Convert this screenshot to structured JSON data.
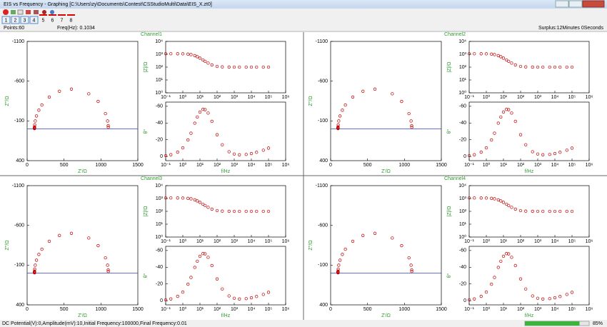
{
  "window": {
    "title": "EIS vs Frequency - Graphing [C:\\Users\\zy\\Documents\\Contest\\CSStudioMulti\\Data\\EIS_X.zt0]"
  },
  "toolbar": {
    "buttons": [
      "1",
      "2",
      "3",
      "4"
    ],
    "labels": [
      "5",
      "6",
      "7",
      "8"
    ]
  },
  "status": {
    "points": "Points:60",
    "freq": "Freq(Hz): 0.1034",
    "surplus": "Surplus:12Minutes 0Seconds"
  },
  "footer": {
    "params": "DC Potential(V):0,Amplitude(mV):10,Initial Frequency:100000,Final Frequency:0.01",
    "progress": {
      "value": 85,
      "label": "85%"
    }
  },
  "channels": [
    {
      "title": "Channel1"
    },
    {
      "title": "Channel2"
    },
    {
      "title": "Channel3"
    },
    {
      "title": "Channel4"
    }
  ],
  "chart_data": [
    {
      "type": "scatter",
      "xlabel": "Z'/Ω",
      "ylabel": "Z''/Ω",
      "color": "#c00000",
      "x": [
        1099.6,
        1098.4,
        1090,
        1061.5,
        962,
        835.3,
        600,
        437.8,
        300,
        200,
        158.8,
        127,
        109.9,
        102.5,
        100.6,
        100.1,
        100,
        100,
        100,
        100,
        100,
        100,
        100
      ],
      "values": [
        -20,
        -40,
        -99,
        -192,
        -345,
        -441,
        -500,
        -473,
        -400,
        -300,
        -235,
        -162,
        -99,
        -50,
        -25,
        -10,
        -5,
        -3.5,
        -4.4,
        -6.1,
        -8.7,
        -13.2,
        -17.6
      ],
      "xlim": [
        0,
        1500
      ],
      "xticks": [
        0,
        500,
        1000,
        1500
      ],
      "ylim": [
        400,
        -1100
      ],
      "yticks": [
        400,
        -100,
        -600,
        -1100
      ]
    },
    {
      "type": "scatter",
      "ylabel": "|Z|/Ω",
      "color": "#c00000",
      "xlog": true,
      "ylog": true,
      "x": [
        0.1,
        0.2,
        0.5,
        1,
        2,
        3,
        5,
        7,
        10,
        15,
        20,
        30,
        50,
        100,
        200,
        500,
        1000,
        2000,
        5000,
        10000,
        20000,
        50000,
        100000
      ],
      "values": [
        1100,
        1099,
        1094,
        1079,
        1022,
        945,
        781,
        645,
        500,
        361,
        284,
        206,
        148,
        114,
        104,
        101,
        100,
        100,
        100,
        100,
        100,
        100,
        100
      ],
      "xlim": [
        0.1,
        1000000
      ],
      "xticks": [
        {
          "value": 0.1,
          "label": "10⁻¹"
        },
        {
          "value": 1,
          "label": "10⁰"
        },
        {
          "value": 10,
          "label": "10¹"
        },
        {
          "value": 100,
          "label": "10²"
        },
        {
          "value": 1000,
          "label": "10³"
        },
        {
          "value": 10000,
          "label": "10⁴"
        },
        {
          "value": 100000,
          "label": "10⁵"
        },
        {
          "value": 1000000,
          "label": "10⁶"
        }
      ],
      "ylim": [
        1,
        10000
      ],
      "yticks": [
        {
          "value": 1,
          "label": "10⁰"
        },
        {
          "value": 10,
          "label": "10¹"
        },
        {
          "value": 100,
          "label": "10²"
        },
        {
          "value": 1000,
          "label": "10³"
        },
        {
          "value": 10000,
          "label": "10⁴"
        }
      ]
    },
    {
      "type": "scatter",
      "xlabel": "f/Hz",
      "ylabel": "θ°",
      "color": "#c00000",
      "xlog": true,
      "x": [
        0.1,
        0.2,
        0.5,
        1,
        2,
        3,
        5,
        7,
        10,
        15,
        20,
        30,
        50,
        100,
        200,
        500,
        1000,
        2000,
        5000,
        10000,
        20000,
        50000,
        100000
      ],
      "values": [
        -1,
        -2.1,
        -5.2,
        -10.3,
        -19.7,
        -27.8,
        -39.8,
        -47.2,
        -53.1,
        -56.3,
        -56,
        -51.9,
        -42,
        -26,
        -14,
        -5.7,
        -2.9,
        -2,
        -2.5,
        -3.5,
        -5,
        -7.5,
        -10
      ],
      "xlim": [
        0.1,
        1000000
      ],
      "xticks": [
        {
          "value": 0.1,
          "label": "10⁻¹"
        },
        {
          "value": 1,
          "label": "10⁰"
        },
        {
          "value": 10,
          "label": "10¹"
        },
        {
          "value": 100,
          "label": "10²"
        },
        {
          "value": 1000,
          "label": "10³"
        },
        {
          "value": 10000,
          "label": "10⁴"
        },
        {
          "value": 100000,
          "label": "10⁵"
        },
        {
          "value": 1000000,
          "label": "10⁶"
        }
      ],
      "ylim": [
        5,
        -65
      ],
      "yticks": [
        0,
        -20,
        -40,
        -60
      ]
    }
  ]
}
